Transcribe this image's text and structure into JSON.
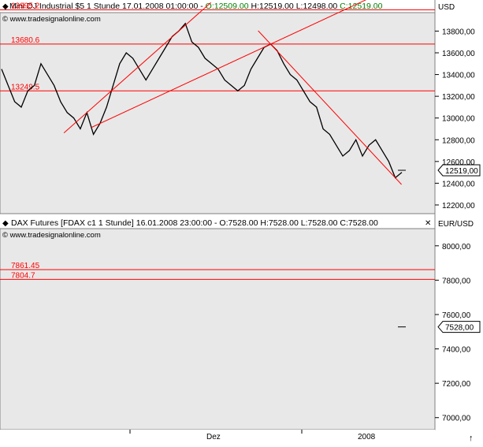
{
  "colors": {
    "background": "#e8e8e8",
    "axis_bg": "#ffffff",
    "price": "#000000",
    "level": "#ff0000",
    "trend": "#ff0000",
    "up": "#008000",
    "frame": "#808080"
  },
  "charts": {
    "top": {
      "header_parts": [
        "Mini DJ Industrial $5 1 Stunde  17.01.2008 01:00:00 - ",
        "O:12509.00",
        " H:12519.00 L:12498.00 ",
        "C:12519.00"
      ],
      "watermark": "© www.tradesignalonline.com",
      "unit": "USD",
      "last_price_label": "12519,00"
    },
    "bottom": {
      "header": "DAX Futures [FDAX c1  1 Stunde] 16.01.2008 23:00:00 - O:7528.00 H:7528.00 L:7528.00 C:7528.00",
      "watermark": "© www.tradesignalonline.com",
      "unit": "EUR/USD",
      "last_price_label": "7528,00"
    }
  },
  "x_labels": [
    "Dez",
    "2008"
  ],
  "chart_data": [
    {
      "type": "line",
      "series": [],
      "x": [
        "",
        "Dez",
        "",
        "2008"
      ],
      "y_ticks": [
        "13800,00",
        "13600,00",
        "13400,00",
        "13200,00",
        "13000,00",
        "12800,00",
        "12600,00",
        "12400,00",
        "12200,00"
      ],
      "ylim": [
        12120,
        13970
      ],
      "levels": [
        {
          "label": "13995.2",
          "value": 13995.2
        },
        {
          "label": "13680.6",
          "value": 13680.6
        },
        {
          "label": "13249.5",
          "value": 13249.5
        }
      ],
      "price": [
        13450,
        13300,
        13150,
        13100,
        13250,
        13300,
        13500,
        13400,
        13300,
        13150,
        13050,
        13000,
        12900,
        13050,
        12850,
        12950,
        13100,
        13300,
        13500,
        13600,
        13550,
        13450,
        13350,
        13450,
        13550,
        13650,
        13750,
        13800,
        13870,
        13700,
        13650,
        13550,
        13500,
        13450,
        13350,
        13300,
        13250,
        13300,
        13450,
        13550,
        13650,
        13680,
        13620,
        13500,
        13400,
        13350,
        13250,
        13150,
        13100,
        12900,
        12850,
        12750,
        12650,
        12700,
        12800,
        12650,
        12750,
        12800,
        12700,
        12600,
        12450,
        12500
      ],
      "last": 12519
    },
    {
      "type": "line",
      "series": [],
      "y_ticks": [
        "8000,00",
        "7800,00",
        "7600,00",
        "7400,00",
        "7200,00",
        "7000,00"
      ],
      "ylim": [
        6930,
        8100
      ],
      "levels": [
        {
          "label": "7861.45",
          "value": 7861.45
        },
        {
          "label": "7804.7",
          "value": 7804.7
        }
      ],
      "last": 7528
    }
  ]
}
